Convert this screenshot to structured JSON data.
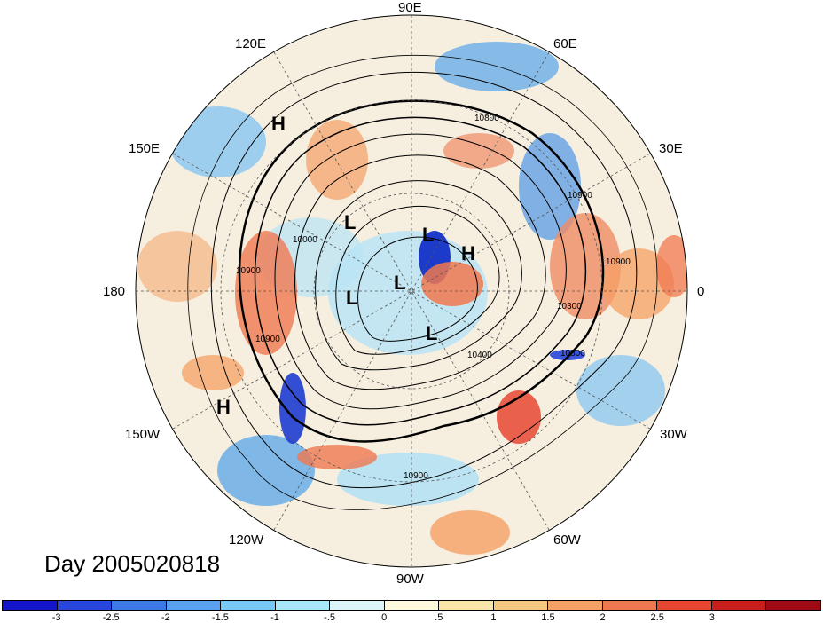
{
  "title": "Day 2005020818",
  "longitude_labels": {
    "lon_90e": "90E",
    "lon_60e": "60E",
    "lon_120e": "120E",
    "lon_150e": "150E",
    "lon_30e": "30E",
    "lon_180": "180",
    "lon_0": "0",
    "lon_150w": "150W",
    "lon_30w": "30W",
    "lon_120w": "120W",
    "lon_60w": "60W",
    "lon_90w": "90W"
  },
  "pressure_systems": [
    {
      "id": "h1",
      "label": "H"
    },
    {
      "id": "h2",
      "label": "H"
    },
    {
      "id": "h3",
      "label": "H"
    },
    {
      "id": "l1",
      "label": "L"
    },
    {
      "id": "l2",
      "label": "L"
    },
    {
      "id": "l3",
      "label": "L"
    },
    {
      "id": "l4",
      "label": "L"
    },
    {
      "id": "l5",
      "label": "L"
    }
  ],
  "contour_labels": {
    "c1": "10800",
    "c2": "10900",
    "c3": "10000",
    "c4": "10900",
    "c5": "10900",
    "c6": "10900",
    "c7": "10300",
    "c8": "10800",
    "c9": "10400",
    "c10": "10900"
  },
  "colorbar": {
    "colors": [
      "#1414c8",
      "#2846dc",
      "#3c78e6",
      "#5aa0f0",
      "#78c8f5",
      "#aae6fa",
      "#dcf5fa",
      "#fffadc",
      "#fae6aa",
      "#f5c882",
      "#f5a064",
      "#f07850",
      "#e64632",
      "#c81e1e",
      "#a00a14"
    ],
    "ticks": [
      "-3",
      "-2.5",
      "-2",
      "-1.5",
      "-1",
      "-.5",
      "0",
      ".5",
      "1",
      "1.5",
      "2",
      "2.5",
      "3"
    ]
  }
}
